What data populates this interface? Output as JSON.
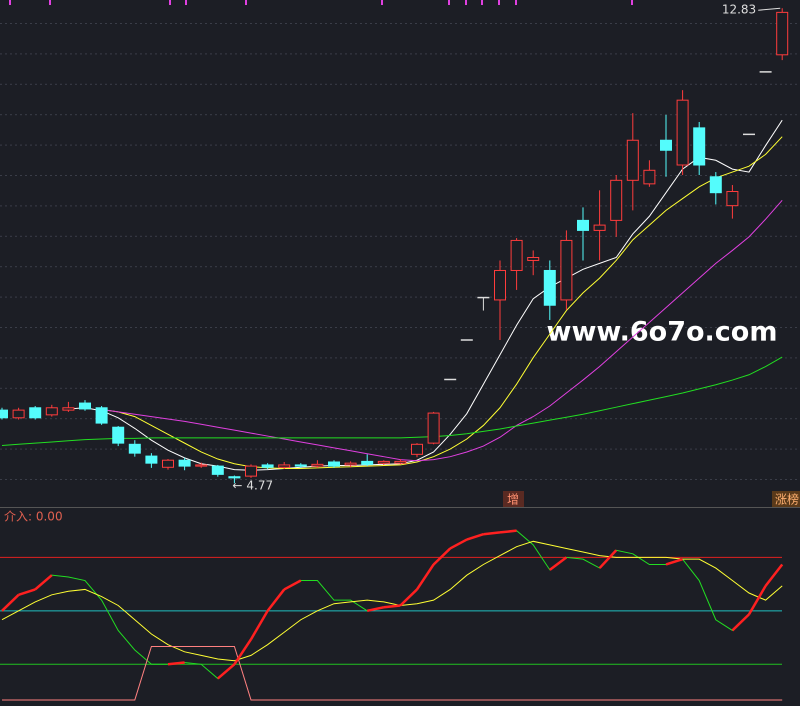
{
  "watermark": "www.6o7o.com",
  "chart_data": [
    {
      "type": "candlestick",
      "ylim": [
        4.4,
        12.97
      ],
      "up_color": "#ff3c3c",
      "down_color": "#54fcfc",
      "flat_color": "#dddddd",
      "open": [
        6.01,
        5.88,
        6.05,
        5.93,
        6.01,
        6.13,
        6.05,
        5.72,
        5.43,
        5.23,
        5.04,
        5.16,
        5.06,
        5.06,
        4.88,
        4.89,
        5.08,
        5.04,
        5.08,
        5.06,
        5.13,
        5.08,
        5.14,
        5.11,
        5.11,
        5.26,
        5.45,
        6.53,
        7.2,
        7.92,
        7.88,
        8.38,
        8.55,
        8.38,
        7.88,
        9.23,
        9.06,
        9.23,
        9.91,
        9.85,
        10.59,
        10.17,
        10.8,
        9.97,
        9.48,
        10.69,
        11.75,
        12.04
      ],
      "high": [
        6.05,
        6.05,
        6.08,
        6.1,
        6.15,
        6.18,
        6.08,
        5.74,
        5.5,
        5.28,
        5.18,
        5.2,
        5.12,
        5.08,
        4.9,
        5.09,
        5.11,
        5.13,
        5.11,
        5.16,
        5.16,
        5.14,
        5.26,
        5.16,
        5.18,
        5.45,
        5.98,
        6.53,
        7.2,
        7.92,
        8.55,
        8.93,
        8.72,
        8.55,
        9.06,
        9.45,
        9.74,
        10.0,
        11.05,
        10.25,
        11.02,
        11.44,
        10.9,
        10.05,
        9.83,
        10.69,
        11.75,
        12.83
      ],
      "low": [
        5.85,
        5.85,
        5.85,
        5.9,
        5.98,
        6.0,
        5.76,
        5.4,
        5.22,
        5.03,
        5.0,
        4.99,
        5.03,
        4.88,
        4.77,
        4.86,
        5.01,
        5.01,
        5.03,
        5.03,
        5.03,
        5.04,
        5.06,
        5.08,
        5.09,
        5.21,
        5.43,
        6.53,
        7.2,
        7.7,
        7.2,
        8.05,
        8.3,
        7.54,
        7.71,
        8.55,
        8.55,
        8.95,
        9.4,
        9.8,
        9.97,
        10.0,
        10.0,
        9.5,
        9.26,
        10.69,
        11.75,
        11.95
      ],
      "close": [
        5.88,
        6.01,
        5.88,
        6.05,
        6.05,
        6.03,
        5.79,
        5.45,
        5.28,
        5.11,
        5.16,
        5.06,
        5.08,
        4.92,
        4.86,
        5.06,
        5.04,
        5.08,
        5.06,
        5.09,
        5.06,
        5.11,
        5.09,
        5.14,
        5.14,
        5.43,
        5.96,
        6.53,
        7.2,
        7.92,
        8.38,
        8.89,
        8.6,
        7.79,
        8.89,
        9.06,
        9.15,
        9.91,
        10.59,
        10.08,
        10.42,
        11.27,
        10.17,
        9.7,
        9.72,
        10.69,
        11.75,
        12.76
      ],
      "lines": [
        {
          "color": "#ffffff",
          "values": [
            null,
            null,
            null,
            null,
            6.03,
            6.05,
            6.0,
            5.88,
            5.7,
            5.5,
            5.33,
            5.2,
            5.1,
            5.06,
            5.0,
            4.99,
            5.0,
            5.02,
            5.04,
            5.06,
            5.07,
            5.07,
            5.08,
            5.09,
            5.1,
            5.16,
            5.3,
            5.6,
            5.95,
            6.45,
            6.95,
            7.45,
            7.9,
            8.1,
            8.25,
            8.4,
            8.5,
            8.6,
            9.0,
            9.3,
            9.7,
            10.1,
            10.3,
            10.25,
            10.1,
            10.05,
            10.5,
            10.93
          ]
        },
        {
          "color": "#ffff33",
          "values": [
            null,
            null,
            null,
            null,
            null,
            null,
            6.02,
            5.98,
            5.9,
            5.75,
            5.6,
            5.45,
            5.3,
            5.18,
            5.1,
            5.05,
            5.03,
            5.02,
            5.02,
            5.03,
            5.04,
            5.05,
            5.06,
            5.07,
            5.08,
            5.13,
            5.22,
            5.35,
            5.52,
            5.75,
            6.05,
            6.45,
            6.9,
            7.3,
            7.7,
            8.0,
            8.25,
            8.55,
            8.9,
            9.15,
            9.4,
            9.6,
            9.8,
            9.95,
            10.05,
            10.15,
            10.35,
            10.65
          ]
        },
        {
          "color": "#e040e0",
          "values": [
            null,
            null,
            null,
            null,
            null,
            null,
            6.02,
            5.98,
            5.94,
            5.9,
            5.86,
            5.82,
            5.77,
            5.72,
            5.67,
            5.62,
            5.57,
            5.52,
            5.47,
            5.42,
            5.37,
            5.32,
            5.27,
            5.22,
            5.17,
            5.15,
            5.17,
            5.22,
            5.3,
            5.4,
            5.55,
            5.75,
            5.9,
            6.08,
            6.3,
            6.52,
            6.75,
            7.0,
            7.25,
            7.5,
            7.75,
            8.0,
            8.25,
            8.5,
            8.72,
            8.95,
            9.25,
            9.57
          ]
        },
        {
          "color": "#22dd22",
          "values": [
            5.41,
            5.43,
            5.45,
            5.47,
            5.49,
            5.51,
            5.52,
            5.53,
            5.53,
            5.54,
            5.54,
            5.54,
            5.54,
            5.54,
            5.54,
            5.54,
            5.54,
            5.54,
            5.54,
            5.54,
            5.54,
            5.54,
            5.54,
            5.54,
            5.54,
            5.55,
            5.56,
            5.58,
            5.61,
            5.65,
            5.69,
            5.74,
            5.79,
            5.84,
            5.89,
            5.94,
            6.0,
            6.06,
            6.12,
            6.18,
            6.24,
            6.3,
            6.37,
            6.44,
            6.52,
            6.61,
            6.75,
            6.91
          ]
        }
      ],
      "annotations": [
        {
          "text": "12.83",
          "value": 12.83
        },
        {
          "text": "4.77",
          "value": 4.77
        }
      ],
      "tags": [
        "增",
        "涨榜"
      ]
    },
    {
      "type": "line",
      "title": "介入: 0.00",
      "ylim": [
        -3.4,
        107.7
      ],
      "hlines": [
        {
          "value": 80,
          "color": "#e02020"
        },
        {
          "value": 50,
          "color": "#20c0c0"
        },
        {
          "value": 20,
          "color": "#20c020"
        }
      ],
      "rise_color": "#ff2020",
      "series": [
        {
          "color": "#22dd22",
          "values": [
            50,
            59,
            62,
            70,
            69,
            67,
            56,
            39,
            28,
            20,
            20,
            21,
            20,
            12,
            20,
            34,
            50,
            62,
            67,
            67,
            56,
            56,
            50,
            52,
            53,
            62,
            76,
            85,
            90,
            93,
            94,
            95,
            87,
            73,
            80,
            79,
            74,
            84,
            82,
            76,
            76,
            79,
            67,
            45,
            39,
            48,
            64,
            76
          ]
        },
        {
          "color": "#ffff33",
          "values": [
            45,
            50,
            55,
            59,
            61,
            62,
            58,
            53,
            45,
            37,
            31,
            27,
            25,
            23,
            22,
            25,
            31,
            38,
            45,
            50,
            54,
            55,
            56,
            55,
            53,
            54,
            56,
            62,
            70,
            76,
            81,
            86,
            89,
            87,
            85,
            83,
            81,
            80,
            80,
            80,
            80,
            79,
            79,
            74,
            67,
            60,
            56,
            64
          ]
        },
        {
          "color": "#ff8080",
          "values": [
            0,
            0,
            0,
            0,
            0,
            0,
            0,
            0,
            0,
            30,
            30,
            30,
            30,
            30,
            30,
            0,
            0,
            0,
            0,
            0,
            0,
            0,
            0,
            0,
            0,
            0,
            0,
            0,
            0,
            0,
            0,
            0,
            0,
            0,
            0,
            0,
            0,
            0,
            0,
            0,
            0,
            0,
            0,
            0,
            0,
            0,
            0,
            0
          ]
        }
      ]
    }
  ]
}
